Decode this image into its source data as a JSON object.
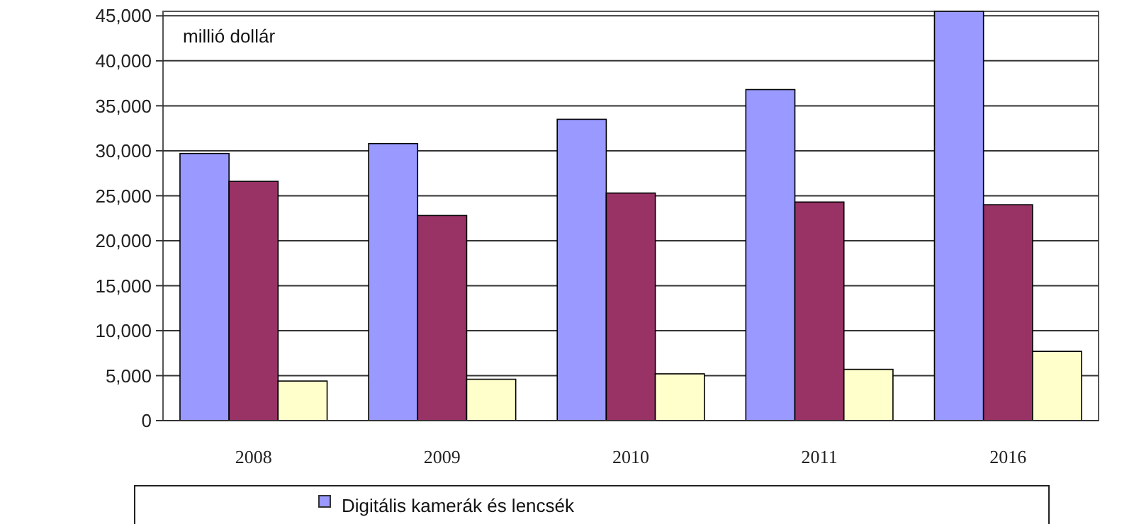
{
  "chart_data": {
    "type": "bar",
    "categories": [
      "2008",
      "2009",
      "2010",
      "2011",
      "2016"
    ],
    "series": [
      {
        "name": "Digitális kamerák és lencsék",
        "color": "#9999ff",
        "values": [
          29700,
          30800,
          33500,
          36800,
          45500
        ]
      },
      {
        "color": "#993366",
        "values": [
          26600,
          22800,
          25300,
          24300,
          24000
        ]
      },
      {
        "color": "#ffffcc",
        "values": [
          4400,
          4600,
          5200,
          5700,
          7700
        ]
      }
    ],
    "ylim": [
      0,
      45500
    ],
    "yticks": [
      0,
      {
        "value": 5000,
        "label": "5,000"
      },
      {
        "value": 10000,
        "label": "10,000"
      },
      {
        "value": 15000,
        "label": "15,000"
      },
      {
        "value": 20000,
        "label": "20,000"
      },
      {
        "value": 25000,
        "label": "25,000"
      },
      {
        "value": 30000,
        "label": "30,000"
      },
      {
        "value": 35000,
        "label": "35,000"
      },
      {
        "value": 40000,
        "label": "40,000"
      },
      {
        "value": 45000,
        "label": "45,000"
      }
    ],
    "grid": "y",
    "legend": "bottom",
    "annotations": [
      "millió dollár"
    ]
  }
}
